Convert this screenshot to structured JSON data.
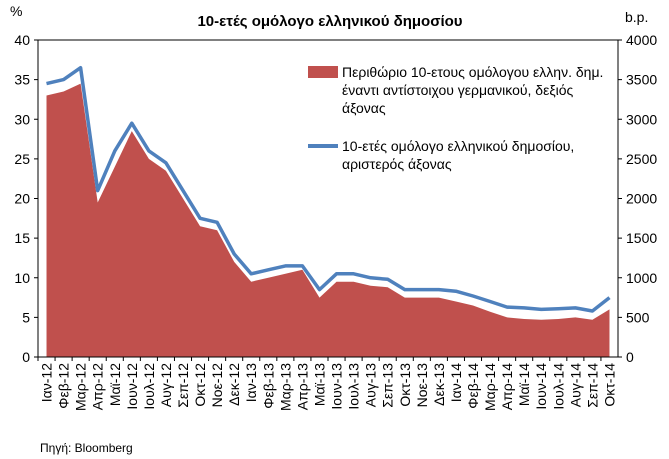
{
  "chart_data": {
    "type": "area-line",
    "title": "10-ετές ομόλογο ελληνικού δημοσίου",
    "ylabel": "%",
    "y2label": "b.p.",
    "source": "Πηγή: Bloomberg",
    "categories": [
      "Ιαν-12",
      "Φεβ-12",
      "Μαρ-12",
      "Απρ-12",
      "Μαϊ-12",
      "Ιουν-12",
      "Ιουλ-12",
      "Αυγ-12",
      "Σεπ-12",
      "Οκτ-12",
      "Νοε-12",
      "Δεκ-12",
      "Ιαν-13",
      "Φεβ-13",
      "Μαρ-13",
      "Απρ-13",
      "Μαϊ-13",
      "Ιουν-13",
      "Ιουλ-13",
      "Αυγ-13",
      "Σεπ-13",
      "Οκτ-13",
      "Νοε-13",
      "Δεκ-13",
      "Ιαν-14",
      "Φεβ-14",
      "Μαρ-14",
      "Απρ-14",
      "Μαϊ-14",
      "Ιουν-14",
      "Ιουλ-14",
      "Αυγ-14",
      "Σεπ-14",
      "Οκτ-14"
    ],
    "series": [
      {
        "name": "Περιθώριο 10-ετους ομόλογου ελλην. δημ. έναντι αντίστοιχου γερμανικού, δεξιός άξονας",
        "color": "#c0504d",
        "axis": "y2",
        "kind": "area",
        "values": [
          3300,
          3350,
          3450,
          1950,
          2400,
          2850,
          2500,
          2350,
          2000,
          1650,
          1600,
          1200,
          950,
          1000,
          1050,
          1100,
          750,
          950,
          950,
          900,
          880,
          750,
          750,
          750,
          700,
          650,
          570,
          500,
          480,
          470,
          480,
          500,
          470,
          600
        ]
      },
      {
        "name": "10-ετές ομόλογο ελληνικού δημοσίου, αριστερός άξονας",
        "color": "#4f81bd",
        "kind": "line",
        "values": [
          34.5,
          35,
          36.5,
          21,
          26,
          29.5,
          26,
          24.5,
          21,
          17.5,
          17,
          13,
          10.5,
          11,
          11.5,
          11.5,
          8.5,
          10.5,
          10.5,
          10,
          9.8,
          8.5,
          8.5,
          8.5,
          8.3,
          7.7,
          7,
          6.3,
          6.2,
          6,
          6.1,
          6.2,
          5.8,
          7.5
        ]
      }
    ],
    "ylim": [
      0,
      40
    ],
    "yticks": [
      0,
      5,
      10,
      15,
      20,
      25,
      30,
      35,
      40
    ],
    "y2lim": [
      0,
      4000
    ],
    "y2ticks": [
      0,
      500,
      1000,
      1500,
      2000,
      2500,
      3000,
      3500,
      4000
    ]
  }
}
